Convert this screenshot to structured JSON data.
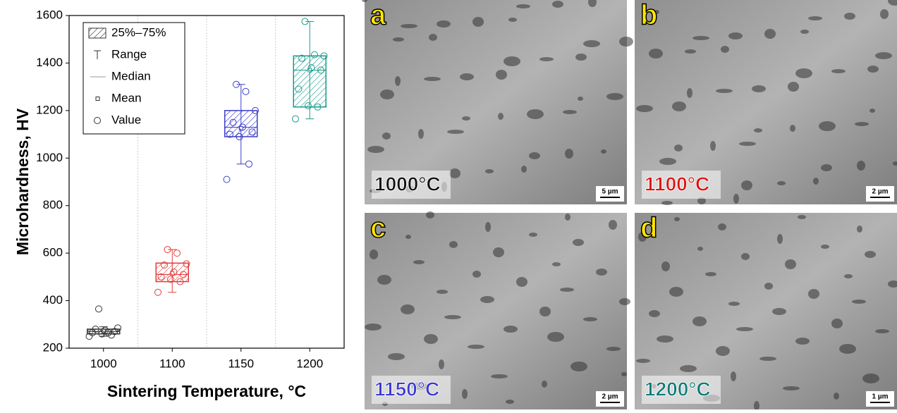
{
  "chart_data": {
    "type": "box",
    "x_label": "Sintering Temperature, °C",
    "y_label": "Microhardness, HV",
    "categories": [
      "1000",
      "1100",
      "1150",
      "1200"
    ],
    "ylim": [
      200,
      1600
    ],
    "yticks": [
      200,
      400,
      600,
      800,
      1000,
      1200,
      1400,
      1600
    ],
    "legend": [
      "25%–75%",
      "Range",
      "Median",
      "Mean",
      "Value"
    ],
    "series": [
      {
        "color": "#333333",
        "whisker_low": 250,
        "q1": 260,
        "median": 270,
        "q3": 280,
        "whisker_high": 290,
        "mean": 272,
        "values": [
          250,
          255,
          260,
          265,
          270,
          275,
          280,
          285,
          265,
          365
        ]
      },
      {
        "color": "#e03c3c",
        "whisker_low": 435,
        "q1": 480,
        "median": 510,
        "q3": 558,
        "whisker_high": 615,
        "mean": 515,
        "values": [
          435,
          480,
          490,
          500,
          510,
          520,
          550,
          555,
          600,
          615
        ]
      },
      {
        "color": "#3c3cc8",
        "whisker_low": 975,
        "q1": 1090,
        "median": 1130,
        "q3": 1200,
        "whisker_high": 1310,
        "mean": 1125,
        "values": [
          910,
          975,
          1090,
          1100,
          1110,
          1130,
          1150,
          1200,
          1280,
          1310
        ]
      },
      {
        "color": "#1a9a8c",
        "whisker_low": 1165,
        "q1": 1215,
        "median": 1370,
        "q3": 1430,
        "whisker_high": 1575,
        "mean": 1370,
        "values": [
          1165,
          1215,
          1220,
          1290,
          1370,
          1380,
          1420,
          1430,
          1435,
          1575
        ]
      }
    ]
  },
  "panels": [
    {
      "letter": "a",
      "temperature": "1000°C",
      "temperature_color": "#111111",
      "scale": "5 µm"
    },
    {
      "letter": "b",
      "temperature": "1100°C",
      "temperature_color": "#e01010",
      "scale": "2 µm"
    },
    {
      "letter": "c",
      "temperature": "1150°C",
      "temperature_color": "#3a3ad0",
      "scale": "2 µm"
    },
    {
      "letter": "d",
      "temperature": "1200°C",
      "temperature_color": "#0f7a78",
      "scale": "1 µm"
    }
  ]
}
